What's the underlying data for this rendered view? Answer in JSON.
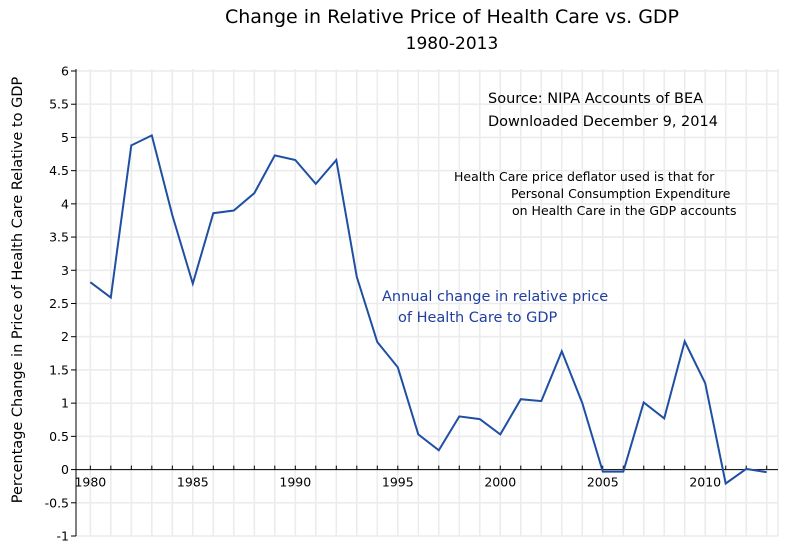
{
  "chart_data": {
    "type": "line",
    "title": "Change in Relative Price of Health Care vs. GDP",
    "subtitle": "1980-2013",
    "xlabel": "",
    "ylabel": "Percentage Change in Price of Health Care Relative to GDP",
    "xlim": [
      1979.3,
      2013.55
    ],
    "ylim": [
      -1,
      6
    ],
    "grid": true,
    "x_ticks": [
      1980,
      1985,
      1990,
      1995,
      2000,
      2005,
      2010
    ],
    "x_tick_labels": [
      "1980",
      "1985",
      "1990",
      "1995",
      "2000",
      "2005",
      "2010"
    ],
    "y_ticks": [
      -1,
      -0.5,
      0,
      0.5,
      1,
      1.5,
      2,
      2.5,
      3,
      3.5,
      4,
      4.5,
      5,
      5.5,
      6
    ],
    "y_tick_labels": [
      "-1",
      "-0.5",
      "0",
      "0.5",
      "1",
      "1.5",
      "2",
      "2.5",
      "3",
      "3.5",
      "4",
      "4.5",
      "5",
      "5.5",
      "6"
    ],
    "x": [
      1980,
      1981,
      1982,
      1983,
      1984,
      1985,
      1986,
      1987,
      1988,
      1989,
      1990,
      1991,
      1992,
      1993,
      1994,
      1995,
      1996,
      1997,
      1998,
      1999,
      2000,
      2001,
      2002,
      2003,
      2004,
      2005,
      2006,
      2007,
      2008,
      2009,
      2010,
      2011,
      2012,
      2013
    ],
    "series": [
      {
        "name": "Annual change in relative price of Health Care to GDP",
        "color": "#1f4fa3",
        "values": [
          2.82,
          2.59,
          4.88,
          5.03,
          3.83,
          2.8,
          3.86,
          3.9,
          4.16,
          4.73,
          4.66,
          4.3,
          4.66,
          2.9,
          1.92,
          1.54,
          0.53,
          0.29,
          0.8,
          0.76,
          0.53,
          1.06,
          1.03,
          1.78,
          1.0,
          -0.03,
          -0.03,
          1.01,
          0.77,
          1.93,
          1.3,
          -0.21,
          0.01,
          -0.04
        ]
      }
    ],
    "annotations": [
      {
        "id": "source",
        "lines": [
          "Source:  NIPA Accounts of BEA",
          "Downloaded December 9, 2014"
        ],
        "color": "#000000"
      },
      {
        "id": "note",
        "lines": [
          "Health Care price deflator used is that for",
          "Personal Consumption Expenditure",
          "on Health Care in the GDP accounts"
        ],
        "color": "#000000"
      },
      {
        "id": "series-label",
        "lines": [
          "Annual change in relative price",
          "of Health Care to GDP"
        ],
        "color": "#1f3f9f"
      }
    ],
    "legend": "none"
  }
}
